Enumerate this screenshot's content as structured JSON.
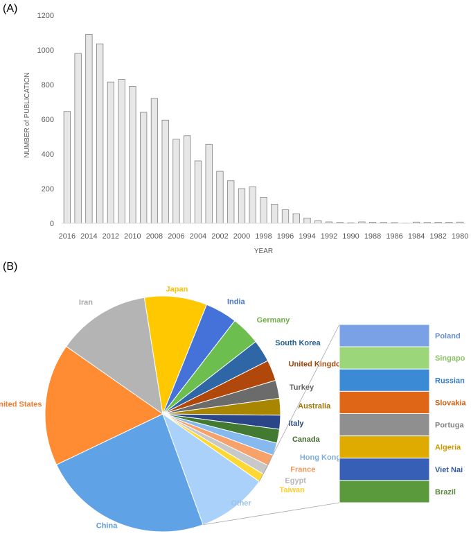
{
  "panels": {
    "a": "(A)",
    "b": "(B)"
  },
  "chart_data": [
    {
      "type": "bar",
      "xlabel": "YEAR",
      "ylabel": "NUMBER of PUBLICATION",
      "ylim": [
        0,
        1200
      ],
      "yticks": [
        0,
        200,
        400,
        600,
        800,
        1000,
        1200
      ],
      "categories": [
        "2016",
        "2015",
        "2014",
        "2013",
        "2012",
        "2011",
        "2010",
        "2009",
        "2008",
        "2007",
        "2006",
        "2005",
        "2004",
        "2003",
        "2002",
        "2001",
        "2000",
        "1999",
        "1998",
        "1997",
        "1996",
        "1995",
        "1994",
        "1993",
        "1992",
        "1991",
        "1990",
        "1989",
        "1988",
        "1987",
        "1986",
        "1985",
        "1984",
        "1983",
        "1982",
        "1981",
        "1980"
      ],
      "xtick_labels": [
        "2016",
        "2014",
        "2012",
        "2010",
        "2008",
        "2006",
        "2004",
        "2002",
        "2000",
        "1998",
        "1996",
        "1994",
        "1992",
        "1990",
        "1988",
        "1986",
        "1984",
        "1982",
        "1980"
      ],
      "values": [
        645,
        980,
        1090,
        1035,
        815,
        830,
        790,
        640,
        720,
        595,
        485,
        505,
        360,
        455,
        300,
        245,
        200,
        210,
        150,
        110,
        78,
        55,
        30,
        15,
        8,
        5,
        3,
        8,
        6,
        5,
        4,
        1,
        7,
        5,
        6,
        6,
        7
      ],
      "bar_color": "#e7e7e7",
      "bar_edge": "#7f7f7f"
    },
    {
      "type": "pie",
      "slices": [
        {
          "label": "China",
          "value": 24.6,
          "color": "#5fa3e6",
          "text_color": "#5b9bd5"
        },
        {
          "label": "United States",
          "value": 17.6,
          "color": "#ff8b33",
          "text_color": "#ed7d31"
        },
        {
          "label": "Iran",
          "value": 13.4,
          "color": "#b4b4b4",
          "text_color": "#a5a5a5"
        },
        {
          "label": "Japan",
          "value": 9.0,
          "color": "#ffc800",
          "text_color": "#ffc000"
        },
        {
          "label": "India",
          "value": 4.6,
          "color": "#4472d8",
          "text_color": "#4472c4"
        },
        {
          "label": "Germany",
          "value": 4.2,
          "color": "#6cbf4e",
          "text_color": "#70ad47"
        },
        {
          "label": "South Korea",
          "value": 3.2,
          "color": "#2e66a6",
          "text_color": "#255e91"
        },
        {
          "label": "United Kingdom",
          "value": 3.0,
          "color": "#b0480c",
          "text_color": "#9e480e"
        },
        {
          "label": "Turkey",
          "value": 2.6,
          "color": "#6b6b6b",
          "text_color": "#636363"
        },
        {
          "label": "Australia",
          "value": 2.4,
          "color": "#a88600",
          "text_color": "#997300"
        },
        {
          "label": "Italy",
          "value": 2.0,
          "color": "#2a4588",
          "text_color": "#264478"
        },
        {
          "label": "Canada",
          "value": 2.0,
          "color": "#437a32",
          "text_color": "#43682b"
        },
        {
          "label": "Hong Kong",
          "value": 1.8,
          "color": "#86b9ee",
          "text_color": "#7cafdd"
        },
        {
          "label": "France",
          "value": 1.6,
          "color": "#f7a26a",
          "text_color": "#f1975a"
        },
        {
          "label": "Egypt",
          "value": 1.4,
          "color": "#c8c8c8",
          "text_color": "#b7b7b7"
        },
        {
          "label": "Taiwan",
          "value": 1.2,
          "color": "#ffd834",
          "text_color": "#ffcd33"
        },
        {
          "label": "Other",
          "value": 10.2,
          "color": "#a9d1fa",
          "text_color": "#9dc3e6"
        }
      ],
      "breakout": {
        "of": "Other",
        "items": [
          {
            "label": "Poland",
            "color": "#7aa0e6",
            "text_color": "#698ed0"
          },
          {
            "label": "Singapo",
            "color": "#9bd67a",
            "text_color": "#8cc168"
          },
          {
            "label": "Russian",
            "color": "#3a8ad6",
            "text_color": "#327dc2"
          },
          {
            "label": "Slovakia",
            "color": "#e06617",
            "text_color": "#d26012"
          },
          {
            "label": "Portuga",
            "color": "#8f8f8f",
            "text_color": "#848484"
          },
          {
            "label": "Algeria",
            "color": "#e0ab00",
            "text_color": "#cc9a00"
          },
          {
            "label": "Viet Nai",
            "color": "#375fb5",
            "text_color": "#335aa1"
          },
          {
            "label": "Brazil",
            "color": "#5b9a3c",
            "text_color": "#5a8a39"
          }
        ]
      }
    }
  ]
}
